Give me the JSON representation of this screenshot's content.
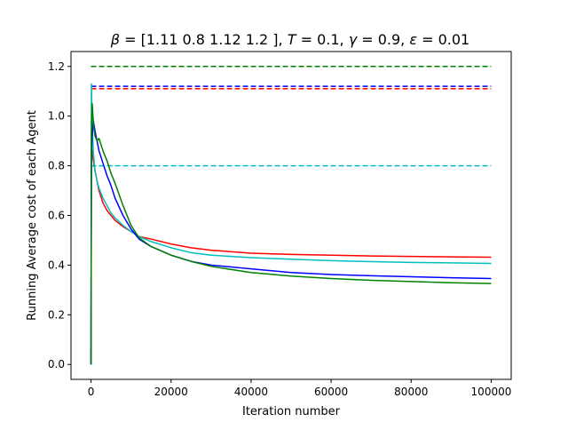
{
  "chart_data": {
    "type": "line",
    "title": {
      "beta_symbol": "β",
      "beta_value": " = [1.11 0.8  1.12 1.2 ], ",
      "T_symbol": "T",
      "T_value": " = 0.1, ",
      "gamma_symbol": "γ",
      "gamma_value": " = 0.9, ",
      "eps_symbol": "ε",
      "eps_value": " = 0.01"
    },
    "xlabel": "Iteration number",
    "ylabel": "Running Average cost of each Agent",
    "xlim": [
      -5000,
      105000
    ],
    "ylim": [
      -0.06,
      1.26
    ],
    "xticks": [
      0,
      20000,
      40000,
      60000,
      80000,
      100000
    ],
    "xtick_labels": [
      "0",
      "20000",
      "40000",
      "60000",
      "80000",
      "100000"
    ],
    "yticks": [
      0.0,
      0.2,
      0.4,
      0.6,
      0.8,
      1.0,
      1.2
    ],
    "ytick_labels": [
      "0.0",
      "0.2",
      "0.4",
      "0.6",
      "0.8",
      "1.0",
      "1.2"
    ],
    "grid": false,
    "legend": "none",
    "reference_lines": [
      {
        "color": "#ff0000",
        "y": 1.11,
        "x": [
          0,
          100000
        ],
        "style": "dashed"
      },
      {
        "color": "#00bfbf",
        "y": 0.8,
        "x": [
          0,
          100000
        ],
        "style": "dashed"
      },
      {
        "color": "#0000ff",
        "y": 1.12,
        "x": [
          0,
          100000
        ],
        "style": "dashed"
      },
      {
        "color": "#008000",
        "y": 1.2,
        "x": [
          0,
          100000
        ],
        "style": "dashed"
      }
    ],
    "series": [
      {
        "color": "#ff0000",
        "x": [
          0,
          100,
          300,
          600,
          1000,
          1500,
          2000,
          3000,
          4000,
          5000,
          6000,
          8000,
          10000,
          12000,
          15000,
          20000,
          25000,
          30000,
          40000,
          50000,
          60000,
          70000,
          80000,
          90000,
          100000
        ],
        "y": [
          0.0,
          0.9,
          0.85,
          0.82,
          0.78,
          0.74,
          0.7,
          0.65,
          0.62,
          0.6,
          0.58,
          0.555,
          0.535,
          0.515,
          0.505,
          0.485,
          0.47,
          0.46,
          0.448,
          0.443,
          0.44,
          0.437,
          0.435,
          0.433,
          0.432
        ]
      },
      {
        "color": "#00bfbf",
        "x": [
          0,
          100,
          300,
          600,
          1000,
          1500,
          2000,
          3000,
          4000,
          5000,
          6000,
          8000,
          10000,
          12000,
          15000,
          20000,
          25000,
          30000,
          40000,
          50000,
          60000,
          70000,
          80000,
          90000,
          100000
        ],
        "y": [
          0.0,
          1.13,
          0.95,
          0.85,
          0.78,
          0.74,
          0.71,
          0.67,
          0.64,
          0.61,
          0.59,
          0.56,
          0.535,
          0.515,
          0.495,
          0.47,
          0.45,
          0.44,
          0.43,
          0.424,
          0.418,
          0.414,
          0.411,
          0.409,
          0.407
        ]
      },
      {
        "color": "#0000ff",
        "x": [
          0,
          100,
          300,
          600,
          1000,
          1500,
          2000,
          3000,
          4000,
          5000,
          6000,
          8000,
          10000,
          12000,
          15000,
          20000,
          25000,
          30000,
          40000,
          50000,
          60000,
          70000,
          80000,
          90000,
          100000
        ],
        "y": [
          0.0,
          0.85,
          0.92,
          0.98,
          0.94,
          0.9,
          0.86,
          0.81,
          0.76,
          0.72,
          0.67,
          0.6,
          0.545,
          0.505,
          0.475,
          0.44,
          0.415,
          0.4,
          0.385,
          0.37,
          0.362,
          0.357,
          0.353,
          0.349,
          0.346
        ]
      },
      {
        "color": "#008000",
        "x": [
          0,
          100,
          300,
          600,
          1000,
          1500,
          2000,
          3000,
          4000,
          5000,
          6000,
          8000,
          10000,
          12000,
          15000,
          20000,
          25000,
          30000,
          40000,
          50000,
          60000,
          70000,
          80000,
          90000,
          100000
        ],
        "y": [
          0.0,
          0.95,
          1.05,
          0.97,
          0.92,
          0.9,
          0.91,
          0.86,
          0.82,
          0.77,
          0.73,
          0.64,
          0.56,
          0.51,
          0.475,
          0.44,
          0.415,
          0.395,
          0.37,
          0.356,
          0.346,
          0.339,
          0.334,
          0.329,
          0.326
        ]
      }
    ]
  }
}
